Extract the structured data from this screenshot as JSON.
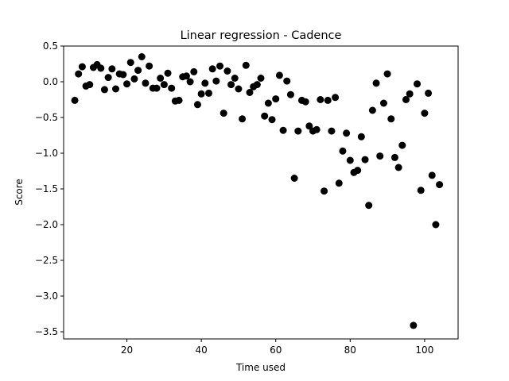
{
  "chart_data": {
    "type": "scatter",
    "title": "Linear regression - Cadence",
    "xlabel": "Time used",
    "ylabel": "Score",
    "xlim": [
      3,
      109
    ],
    "ylim": [
      -3.6,
      0.5
    ],
    "xticks": [
      20,
      40,
      60,
      80,
      100
    ],
    "yticks": [
      0.5,
      0.0,
      -0.5,
      -1.0,
      -1.5,
      -2.0,
      -2.5,
      -3.0,
      -3.5
    ],
    "xtick_labels": [
      "20",
      "40",
      "60",
      "80",
      "100"
    ],
    "ytick_labels": [
      "0.5",
      "0.0",
      "−0.5",
      "−1.0",
      "−1.5",
      "−2.0",
      "−2.5",
      "−3.0",
      "−3.5"
    ],
    "grid": false,
    "marker_color": "#000000",
    "series": [
      {
        "points": [
          [
            6,
            -0.26
          ],
          [
            7,
            0.11
          ],
          [
            8,
            0.21
          ],
          [
            9,
            -0.06
          ],
          [
            10,
            -0.04
          ],
          [
            11,
            0.2
          ],
          [
            12,
            0.24
          ],
          [
            13,
            0.19
          ],
          [
            14,
            -0.11
          ],
          [
            15,
            0.06
          ],
          [
            16,
            0.18
          ],
          [
            17,
            -0.1
          ],
          [
            18,
            0.11
          ],
          [
            19,
            0.1
          ],
          [
            20,
            -0.03
          ],
          [
            21,
            0.27
          ],
          [
            22,
            0.04
          ],
          [
            23,
            0.16
          ],
          [
            24,
            0.35
          ],
          [
            25,
            -0.02
          ],
          [
            26,
            0.22
          ],
          [
            27,
            -0.09
          ],
          [
            28,
            -0.09
          ],
          [
            29,
            0.05
          ],
          [
            30,
            -0.04
          ],
          [
            31,
            0.12
          ],
          [
            32,
            -0.09
          ],
          [
            33,
            -0.27
          ],
          [
            34,
            -0.26
          ],
          [
            35,
            0.07
          ],
          [
            36,
            0.08
          ],
          [
            37,
            0.0
          ],
          [
            38,
            0.14
          ],
          [
            39,
            -0.32
          ],
          [
            40,
            -0.17
          ],
          [
            41,
            -0.02
          ],
          [
            42,
            -0.16
          ],
          [
            43,
            0.18
          ],
          [
            44,
            0.01
          ],
          [
            45,
            0.22
          ],
          [
            46,
            -0.44
          ],
          [
            47,
            0.15
          ],
          [
            48,
            -0.04
          ],
          [
            49,
            0.05
          ],
          [
            50,
            -0.1
          ],
          [
            51,
            -0.52
          ],
          [
            52,
            0.23
          ],
          [
            53,
            -0.15
          ],
          [
            54,
            -0.07
          ],
          [
            55,
            -0.04
          ],
          [
            56,
            0.05
          ],
          [
            57,
            -0.48
          ],
          [
            58,
            -0.3
          ],
          [
            59,
            -0.53
          ],
          [
            60,
            -0.24
          ],
          [
            61,
            0.09
          ],
          [
            62,
            -0.68
          ],
          [
            63,
            0.01
          ],
          [
            64,
            -0.18
          ],
          [
            65,
            -1.35
          ],
          [
            66,
            -0.69
          ],
          [
            67,
            -0.26
          ],
          [
            68,
            -0.28
          ],
          [
            69,
            -0.62
          ],
          [
            70,
            -0.69
          ],
          [
            71,
            -0.67
          ],
          [
            72,
            -0.25
          ],
          [
            73,
            -1.53
          ],
          [
            74,
            -0.26
          ],
          [
            75,
            -0.69
          ],
          [
            76,
            -0.22
          ],
          [
            77,
            -1.42
          ],
          [
            78,
            -0.97
          ],
          [
            79,
            -0.72
          ],
          [
            80,
            -1.1
          ],
          [
            81,
            -1.27
          ],
          [
            82,
            -1.24
          ],
          [
            83,
            -0.77
          ],
          [
            84,
            -1.09
          ],
          [
            85,
            -1.73
          ],
          [
            86,
            -0.4
          ],
          [
            87,
            -0.02
          ],
          [
            88,
            -1.04
          ],
          [
            89,
            -0.3
          ],
          [
            90,
            0.11
          ],
          [
            91,
            -0.52
          ],
          [
            92,
            -1.06
          ],
          [
            93,
            -1.2
          ],
          [
            94,
            -0.89
          ],
          [
            95,
            -0.25
          ],
          [
            96,
            -0.17
          ],
          [
            97,
            -3.41
          ],
          [
            98,
            -0.03
          ],
          [
            99,
            -1.52
          ],
          [
            100,
            -0.44
          ],
          [
            101,
            -0.16
          ],
          [
            102,
            -1.31
          ],
          [
            103,
            -2.0
          ],
          [
            104,
            -1.44
          ]
        ]
      }
    ]
  }
}
